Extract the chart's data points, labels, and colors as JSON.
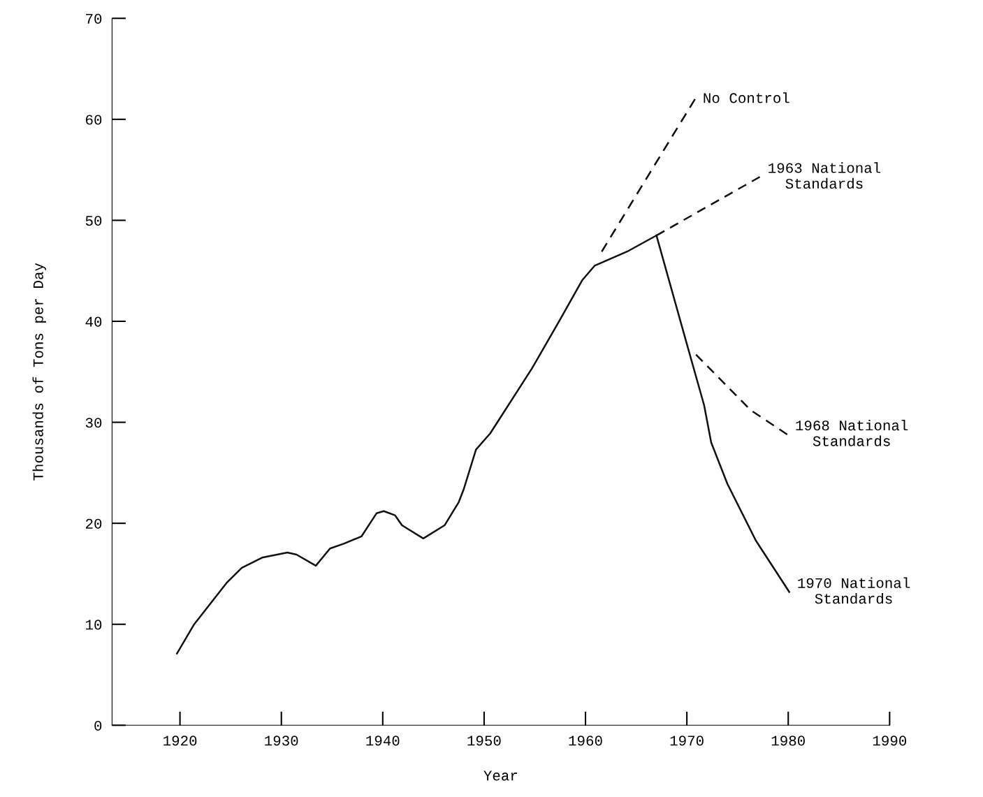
{
  "chart_data": {
    "type": "line",
    "xlabel": "Year",
    "ylabel": "Thousands of Tons per Day",
    "xlim": [
      1913.3,
      1990
    ],
    "xticks": [
      1920,
      1930,
      1940,
      1950,
      1960,
      1970,
      1980,
      1990
    ],
    "ylim": [
      0,
      70
    ],
    "yticks": [
      0,
      10,
      20,
      30,
      40,
      50,
      60,
      70
    ],
    "grid": false,
    "legend": false,
    "series": [
      {
        "color": "#111111",
        "line_style": "solid",
        "x": [
          1919.7,
          1921.4,
          1924.6,
          1926.1,
          1928.1,
          1930.6,
          1931.5,
          1933.4,
          1934.8,
          1936.2,
          1937.9,
          1939.4,
          1940.1,
          1941.2,
          1941.9,
          1944.0,
          1946.1,
          1947.5,
          1948.0,
          1949.2,
          1950.6,
          1954.7,
          1957.4,
          1959.7,
          1960.9,
          1964.1,
          1967.0
        ],
        "values": [
          7.1,
          10.0,
          14.1,
          15.6,
          16.6,
          17.1,
          16.9,
          15.8,
          17.5,
          18.0,
          18.7,
          21.0,
          21.2,
          20.8,
          19.8,
          18.5,
          19.8,
          22.1,
          23.4,
          27.3,
          28.9,
          35.3,
          40.0,
          44.1,
          45.5,
          46.9,
          48.5
        ]
      },
      {
        "name": "No Control",
        "color": "#111111",
        "line_style": "dashed",
        "x": [
          1961.6,
          1970.8
        ],
        "values": [
          46.9,
          62.0
        ]
      },
      {
        "name": "1963 National\nStandards",
        "color": "#111111",
        "line_style": "dashed",
        "x": [
          1967.0,
          1977.2
        ],
        "values": [
          48.5,
          54.3
        ]
      },
      {
        "name": "1968 National\nStandards",
        "color": "#111111",
        "line_style": "dashed",
        "x": [
          1970.9,
          1976.3,
          1979.9
        ],
        "values": [
          36.7,
          31.2,
          28.8
        ]
      },
      {
        "name": "1970 National\nStandards",
        "color": "#111111",
        "line_style": "solid",
        "x": [
          1967.0,
          1969.9,
          1971.7,
          1972.4,
          1974.0,
          1976.8,
          1980.1
        ],
        "values": [
          48.5,
          38.1,
          31.7,
          28.0,
          23.9,
          18.3,
          13.2
        ]
      }
    ]
  }
}
